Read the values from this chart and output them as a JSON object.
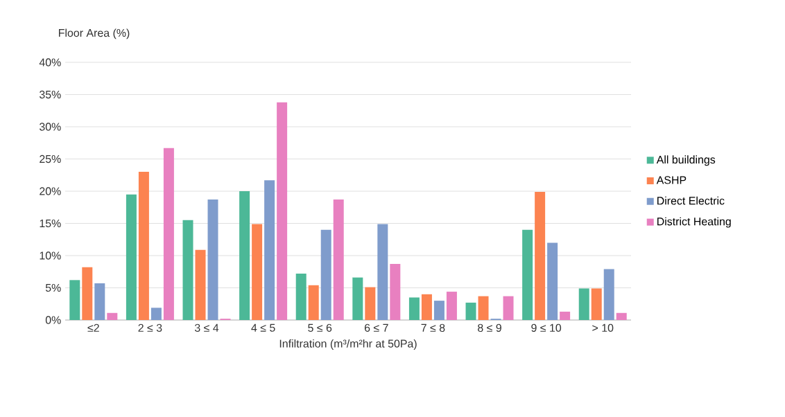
{
  "chart_data": {
    "type": "bar",
    "ylabel": "Floor Area (%)",
    "xlabel": "Infiltration (m³/m²hr at 50Pa)",
    "categories": [
      "≤2",
      "2 ≤ 3",
      "3 ≤ 4",
      "4 ≤ 5",
      "5 ≤ 6",
      "6 ≤ 7",
      "7 ≤ 8",
      "8 ≤ 9",
      "9 ≤ 10",
      "> 10"
    ],
    "series": [
      {
        "name": "All buildings",
        "color": "#4cb897",
        "values": [
          6.2,
          19.5,
          15.5,
          20.0,
          7.2,
          6.6,
          3.5,
          2.7,
          14.0,
          4.9
        ]
      },
      {
        "name": "ASHP",
        "color": "#fc8350",
        "values": [
          8.2,
          23.0,
          10.9,
          14.9,
          5.4,
          5.1,
          4.0,
          3.7,
          19.9,
          4.9
        ]
      },
      {
        "name": "Direct Electric",
        "color": "#7f9ccc",
        "values": [
          5.7,
          1.9,
          18.7,
          21.7,
          14.0,
          14.9,
          3.0,
          0.2,
          12.0,
          7.9
        ]
      },
      {
        "name": "District Heating",
        "color": "#e880c0",
        "values": [
          1.1,
          26.7,
          0.2,
          33.8,
          18.7,
          8.7,
          4.4,
          3.7,
          1.3,
          1.1
        ]
      }
    ],
    "ylim": [
      0,
      40
    ],
    "yticks": [
      {
        "value": 0,
        "label": "0%"
      },
      {
        "value": 5,
        "label": "5%"
      },
      {
        "value": 10,
        "label": "10%"
      },
      {
        "value": 15,
        "label": "15%"
      },
      {
        "value": 20,
        "label": "20%"
      },
      {
        "value": 25,
        "label": "25%"
      },
      {
        "value": 30,
        "label": "30%"
      },
      {
        "value": 35,
        "label": "35%"
      },
      {
        "value": 40,
        "label": "40%"
      }
    ],
    "grid": "y",
    "legend": "right"
  }
}
